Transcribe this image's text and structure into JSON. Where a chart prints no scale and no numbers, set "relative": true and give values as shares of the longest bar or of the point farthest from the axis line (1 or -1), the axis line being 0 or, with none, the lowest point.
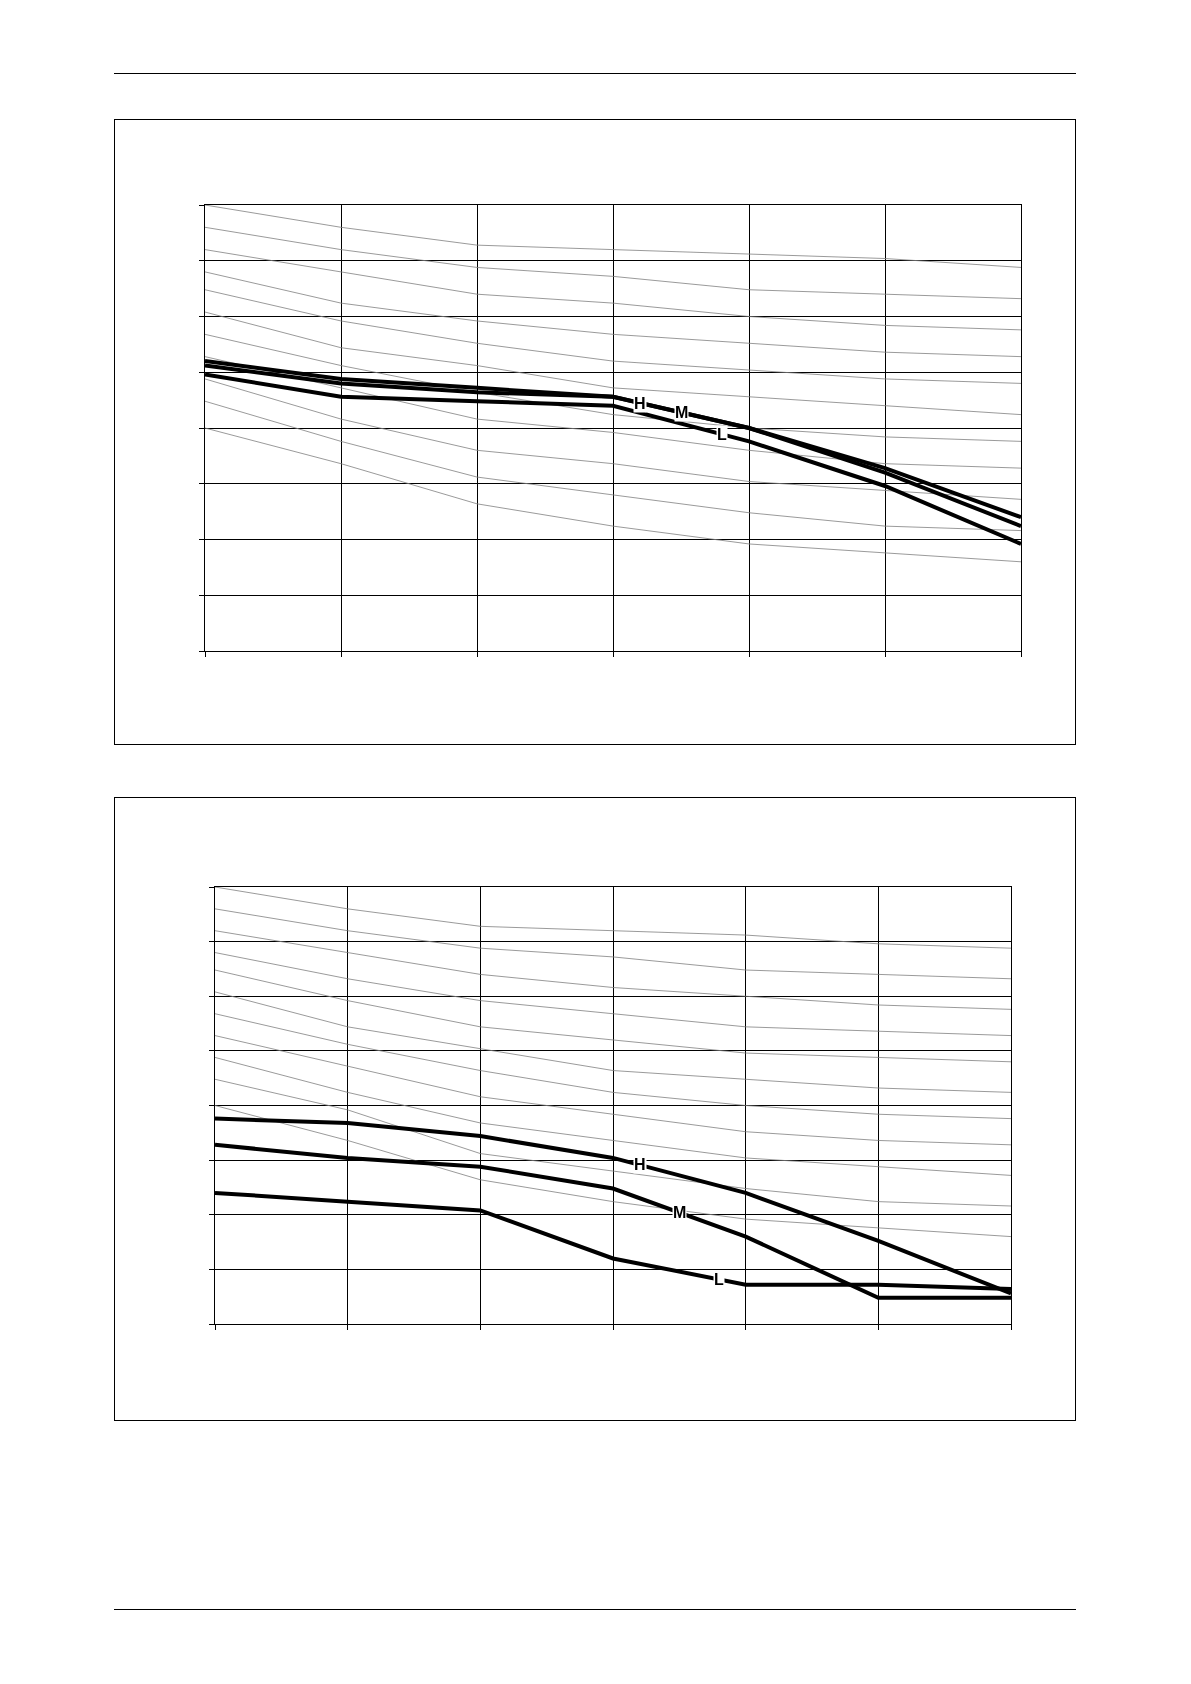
{
  "chart_data": [
    {
      "type": "line",
      "relative": true,
      "grid": true,
      "categories": [
        null,
        null,
        null,
        null,
        null,
        null,
        null
      ],
      "series": [
        {
          "color": "#808080",
          "values": [
            1,
            0.95,
            0.91,
            0.9,
            0.89,
            0.88,
            0.86
          ]
        },
        {
          "color": "#808080",
          "values": [
            0.95,
            0.9,
            0.86,
            0.84,
            0.81,
            0.8,
            0.79
          ]
        },
        {
          "color": "#808080",
          "values": [
            0.9,
            0.85,
            0.8,
            0.78,
            0.75,
            0.73,
            0.72
          ]
        },
        {
          "color": "#808080",
          "values": [
            0.85,
            0.78,
            0.74,
            0.71,
            0.69,
            0.67,
            0.66
          ]
        },
        {
          "color": "#808080",
          "values": [
            0.81,
            0.74,
            0.69,
            0.65,
            0.63,
            0.61,
            0.6
          ]
        },
        {
          "color": "#808080",
          "values": [
            0.76,
            0.68,
            0.64,
            0.59,
            0.57,
            0.55,
            0.53
          ]
        },
        {
          "color": "#808080",
          "values": [
            0.71,
            0.64,
            0.58,
            0.53,
            0.5,
            0.48,
            0.47
          ]
        },
        {
          "color": "#808080",
          "values": [
            0.66,
            0.59,
            0.52,
            0.49,
            0.45,
            0.42,
            0.41
          ]
        },
        {
          "color": "#808080",
          "values": [
            0.61,
            0.52,
            0.45,
            0.42,
            0.38,
            0.36,
            0.34
          ]
        },
        {
          "color": "#808080",
          "values": [
            0.56,
            0.47,
            0.39,
            0.35,
            0.31,
            0.28,
            0.27
          ]
        },
        {
          "color": "#808080",
          "values": [
            0.5,
            0.42,
            0.33,
            0.28,
            0.24,
            0.22,
            0.2
          ]
        },
        {
          "name": "H",
          "color": "#000000",
          "values": [
            0.65,
            0.61,
            0.59,
            0.57,
            0.5,
            0.41,
            0.3
          ]
        },
        {
          "name": "M",
          "color": "#000000",
          "values": [
            0.64,
            0.6,
            0.58,
            0.57,
            0.5,
            0.4,
            0.28
          ]
        },
        {
          "name": "L",
          "color": "#000000",
          "values": [
            0.62,
            0.57,
            0.56,
            0.55,
            0.47,
            0.37,
            0.24
          ]
        }
      ]
    },
    {
      "type": "line",
      "relative": true,
      "grid": true,
      "categories": [
        null,
        null,
        null,
        null,
        null,
        null,
        null
      ],
      "series": [
        {
          "color": "#808080",
          "values": [
            1,
            0.95,
            0.91,
            0.9,
            0.89,
            0.87,
            0.86
          ]
        },
        {
          "color": "#808080",
          "values": [
            0.95,
            0.9,
            0.86,
            0.84,
            0.81,
            0.8,
            0.79
          ]
        },
        {
          "color": "#808080",
          "values": [
            0.9,
            0.85,
            0.8,
            0.77,
            0.75,
            0.73,
            0.72
          ]
        },
        {
          "color": "#808080",
          "values": [
            0.85,
            0.79,
            0.74,
            0.71,
            0.68,
            0.67,
            0.66
          ]
        },
        {
          "color": "#808080",
          "values": [
            0.81,
            0.74,
            0.68,
            0.65,
            0.62,
            0.61,
            0.6
          ]
        },
        {
          "color": "#808080",
          "values": [
            0.76,
            0.68,
            0.63,
            0.58,
            0.56,
            0.54,
            0.53
          ]
        },
        {
          "color": "#808080",
          "values": [
            0.71,
            0.64,
            0.58,
            0.53,
            0.5,
            0.48,
            0.47
          ]
        },
        {
          "color": "#808080",
          "values": [
            0.66,
            0.59,
            0.52,
            0.48,
            0.44,
            0.42,
            0.41
          ]
        },
        {
          "color": "#808080",
          "values": [
            0.61,
            0.53,
            0.46,
            0.42,
            0.38,
            0.36,
            0.34
          ]
        },
        {
          "color": "#808080",
          "values": [
            0.56,
            0.49,
            0.39,
            0.35,
            0.31,
            0.28,
            0.27
          ]
        },
        {
          "color": "#808080",
          "values": [
            0.5,
            0.42,
            0.33,
            0.28,
            0.24,
            0.22,
            0.2
          ]
        },
        {
          "name": "H",
          "color": "#000000",
          "values": [
            0.47,
            0.46,
            0.43,
            0.38,
            0.3,
            0.19,
            0.07
          ]
        },
        {
          "name": "M",
          "color": "#000000",
          "values": [
            0.41,
            0.38,
            0.36,
            0.31,
            0.2,
            0.06,
            0.06
          ]
        },
        {
          "name": "L",
          "color": "#000000",
          "values": [
            0.3,
            0.28,
            0.26,
            0.15,
            0.09,
            0.09,
            0.08
          ]
        }
      ]
    }
  ]
}
